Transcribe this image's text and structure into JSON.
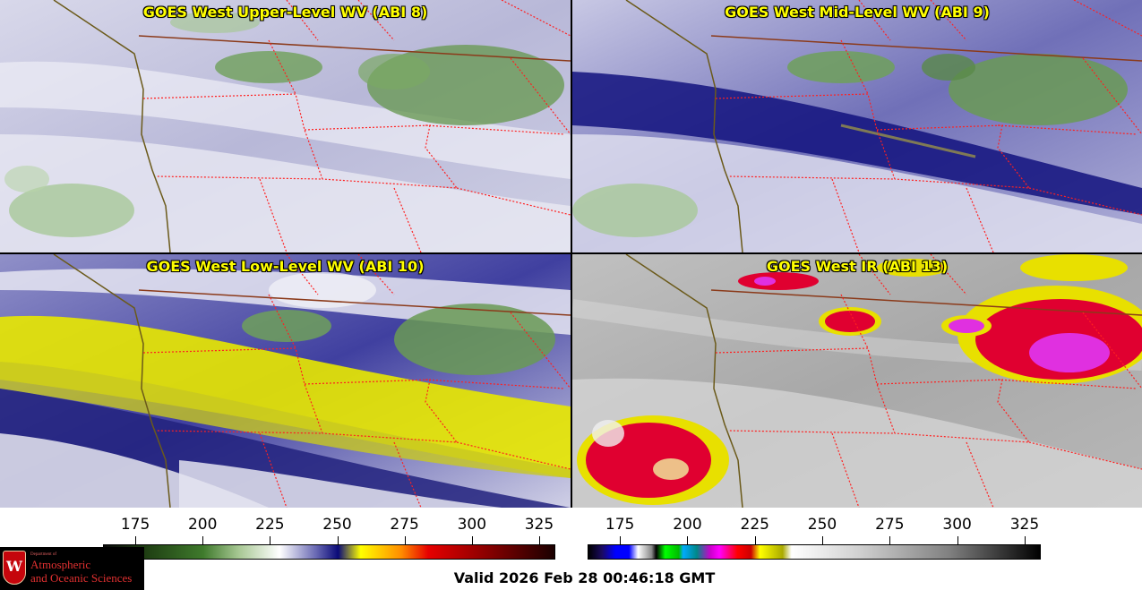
{
  "panels": {
    "upper": {
      "title": "GOES West Upper-Level WV (ABI 8)"
    },
    "mid": {
      "title": "GOES West Mid-Level WV (ABI 9)"
    },
    "low": {
      "title": "GOES West Low-Level WV (ABI 10)"
    },
    "ir": {
      "title": "GOES West IR (ABI 13)"
    }
  },
  "colorbars": {
    "wv": {
      "ticks": [
        "175",
        "200",
        "225",
        "250",
        "275",
        "300",
        "325"
      ],
      "tick_values": [
        175,
        200,
        225,
        250,
        275,
        300,
        325
      ],
      "range": [
        163,
        331
      ]
    },
    "ir": {
      "ticks": [
        "175",
        "200",
        "225",
        "250",
        "275",
        "300",
        "325"
      ],
      "tick_values": [
        175,
        200,
        225,
        250,
        275,
        300,
        325
      ],
      "range": [
        163,
        331
      ]
    }
  },
  "logo": {
    "dept": "Department of",
    "line1": "Atmospheric",
    "line2": "and Oceanic Sciences",
    "crest_letter": "W"
  },
  "valid_time": "Valid 2026 Feb 28 00:46:18 GMT",
  "colors": {
    "title": "#ffff00",
    "border_state": "#ff2020",
    "border_country": "#8b3a1a",
    "coast": "#6b5a1a"
  }
}
